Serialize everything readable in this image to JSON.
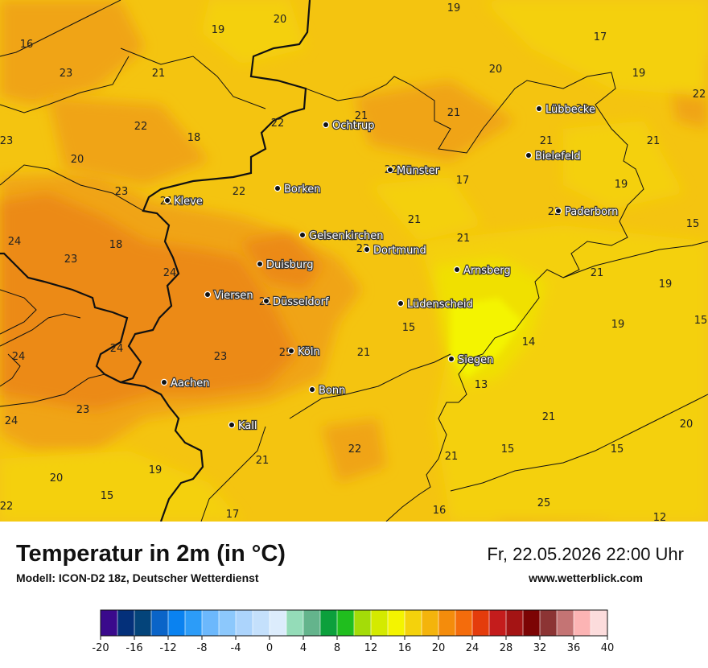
{
  "header": {
    "title": "Temperatur in 2m (in °C)",
    "model": "Modell: ICON-D2 18z, Deutscher Wetterdienst",
    "datetime": "Fr, 22.05.2026 22:00 Uhr",
    "website": "www.wetterblick.com"
  },
  "cities": [
    {
      "name": "Ochtrup"
    },
    {
      "name": "Lübbecke"
    },
    {
      "name": "Bielefeld"
    },
    {
      "name": "Münster"
    },
    {
      "name": "Kleve"
    },
    {
      "name": "Borken"
    },
    {
      "name": "Paderborn"
    },
    {
      "name": "Gelsenkirchen"
    },
    {
      "name": "Dortmund"
    },
    {
      "name": "Duisburg"
    },
    {
      "name": "Arnsberg"
    },
    {
      "name": "Viersen"
    },
    {
      "name": "Düsseldorf"
    },
    {
      "name": "Lüdenscheid"
    },
    {
      "name": "Köln"
    },
    {
      "name": "Siegen"
    },
    {
      "name": "Aachen"
    },
    {
      "name": "Bonn"
    },
    {
      "name": "Kall"
    }
  ],
  "temperatures": [
    "19",
    "20",
    "16",
    "19",
    "17",
    "23",
    "21",
    "20",
    "19",
    "22",
    "21",
    "21",
    "20",
    "22",
    "23",
    "18",
    "22",
    "21",
    "21",
    "20",
    "21",
    "22",
    "22",
    "17",
    "19",
    "23",
    "21",
    "22",
    "21",
    "15",
    "24",
    "18",
    "23",
    "22",
    "21",
    "24",
    "19",
    "21",
    "24",
    "15",
    "15",
    "23",
    "24",
    "23",
    "25",
    "21",
    "14",
    "19",
    "13",
    "24",
    "21",
    "21",
    "20",
    "22",
    "15",
    "15",
    "19",
    "21",
    "20",
    "15",
    "25",
    "22",
    "17",
    "16",
    "12"
  ],
  "legend": {
    "colors": [
      "#3a0a8c",
      "#04307a",
      "#04447a",
      "#0a64c8",
      "#0a82f0",
      "#2c9cf8",
      "#6cb8fc",
      "#8cc8fc",
      "#acd4fc",
      "#c4e0fc",
      "#dcecfc",
      "#94dcb8",
      "#64b48c",
      "#0ca03c",
      "#20be1e",
      "#a4dc08",
      "#d4ea00",
      "#f4f400",
      "#f4d20c",
      "#f4b40c",
      "#f48c0c",
      "#f46c0c",
      "#e43c0c",
      "#c41c1c",
      "#a41414",
      "#7c0404",
      "#8c3434",
      "#c47474",
      "#fcb4b4",
      "#fcdcdc"
    ],
    "ticks": [
      "-20",
      "-16",
      "-12",
      "-8",
      "-4",
      "0",
      "4",
      "8",
      "12",
      "16",
      "20",
      "24",
      "28",
      "32",
      "36",
      "40"
    ]
  }
}
